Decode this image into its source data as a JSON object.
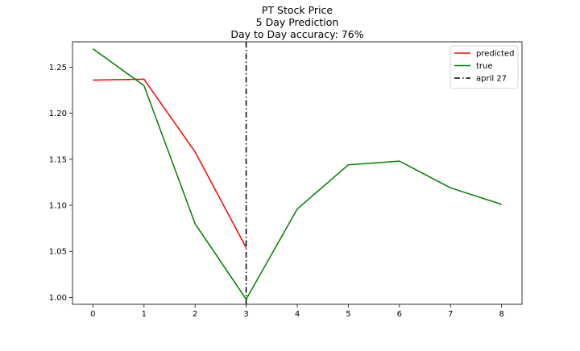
{
  "chart_data": {
    "type": "line",
    "title_lines": [
      "PT Stock Price",
      "5 Day Prediction",
      "Day to Day accuracy: 76%"
    ],
    "xlabel": "",
    "ylabel": "",
    "xlim": [
      -0.4,
      8.4
    ],
    "ylim": [
      0.9925,
      1.2775
    ],
    "x_ticks": [
      0,
      1,
      2,
      3,
      4,
      5,
      6,
      7,
      8
    ],
    "x_tick_labels": [
      "0",
      "1",
      "2",
      "3",
      "4",
      "5",
      "6",
      "7",
      "8"
    ],
    "y_ticks": [
      1.0,
      1.05,
      1.1,
      1.15,
      1.2,
      1.25
    ],
    "y_tick_labels": [
      "1.00",
      "1.05",
      "1.10",
      "1.15",
      "1.20",
      "1.25"
    ],
    "grid": false,
    "legend_position": "top-right",
    "series": [
      {
        "name": "predicted",
        "color": "#ff0000",
        "style": "solid",
        "x": [
          0,
          1,
          2,
          3
        ],
        "y": [
          1.236,
          1.237,
          1.158,
          1.054
        ]
      },
      {
        "name": "true",
        "color": "#008000",
        "style": "solid",
        "x": [
          0,
          1,
          2,
          3,
          4,
          5,
          6,
          7,
          8
        ],
        "y": [
          1.27,
          1.23,
          1.08,
          0.998,
          1.096,
          1.144,
          1.148,
          1.119,
          1.101
        ]
      }
    ],
    "vlines": [
      {
        "name": "april 27",
        "x": 3,
        "color": "#000000",
        "style": "dashdot"
      }
    ]
  }
}
